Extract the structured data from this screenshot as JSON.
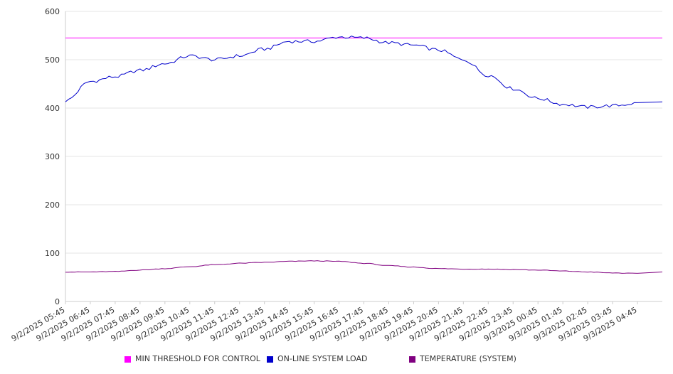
{
  "chart_data": {
    "type": "line",
    "title": "",
    "xlabel": "",
    "ylabel": "",
    "ylim": [
      0,
      600
    ],
    "y_ticks": [
      0,
      100,
      200,
      300,
      400,
      500,
      600
    ],
    "grid": true,
    "legend_position": "bottom",
    "x_tick_labels": [
      "9/2/2025 05:45",
      "9/2/2025 06:45",
      "9/2/2025 07:45",
      "9/2/2025 08:45",
      "9/2/2025 09:45",
      "9/2/2025 10:45",
      "9/2/2025 11:45",
      "9/2/2025 12:45",
      "9/2/2025 13:45",
      "9/2/2025 14:45",
      "9/2/2025 15:45",
      "9/2/2025 16:45",
      "9/2/2025 17:45",
      "9/2/2025 18:45",
      "9/2/2025 19:45",
      "9/2/2025 20:45",
      "9/2/2025 21:45",
      "9/2/2025 22:45",
      "9/2/2025 23:45",
      "9/3/2025 00:45",
      "9/3/2025 01:45",
      "9/3/2025 02:45",
      "9/3/2025 03:45",
      "9/3/2025 04:45"
    ],
    "x": [
      "9/2/2025 05:45",
      "9/2/2025 06:45",
      "9/2/2025 07:45",
      "9/2/2025 08:45",
      "9/2/2025 09:45",
      "9/2/2025 10:45",
      "9/2/2025 11:45",
      "9/2/2025 12:45",
      "9/2/2025 13:45",
      "9/2/2025 14:45",
      "9/2/2025 15:45",
      "9/2/2025 16:45",
      "9/2/2025 17:45",
      "9/2/2025 18:45",
      "9/2/2025 19:45",
      "9/2/2025 20:45",
      "9/2/2025 21:45",
      "9/2/2025 22:45",
      "9/2/2025 23:45",
      "9/3/2025 00:45",
      "9/3/2025 01:45",
      "9/3/2025 02:45",
      "9/3/2025 03:45",
      "9/3/2025 04:45"
    ],
    "series": [
      {
        "name": "MIN THRESHOLD FOR CONTROL",
        "color": "#ff00ff",
        "values": [
          545,
          545,
          545,
          545,
          545,
          545,
          545,
          545,
          545,
          545,
          545,
          545,
          545,
          545,
          545,
          545,
          545,
          545,
          545,
          545,
          545,
          545,
          545,
          545
        ]
      },
      {
        "name": "ON-LINE SYSTEM LOAD",
        "color": "#0000cc",
        "values": [
          415,
          455,
          465,
          478,
          492,
          508,
          500,
          508,
          522,
          538,
          538,
          547,
          545,
          535,
          530,
          520,
          500,
          468,
          440,
          420,
          408,
          402,
          405,
          410
        ]
      },
      {
        "name": "TEMPERATURE (SYSTEM)",
        "color": "#800080",
        "values": [
          61,
          61,
          62,
          65,
          68,
          72,
          76,
          79,
          81,
          83,
          84,
          83,
          79,
          74,
          71,
          68,
          67,
          67,
          66,
          65,
          63,
          61,
          59,
          58
        ]
      }
    ]
  },
  "legend": [
    {
      "label": "MIN THRESHOLD FOR CONTROL",
      "color": "#ff00ff"
    },
    {
      "label": "ON-LINE SYSTEM LOAD",
      "color": "#0000cc"
    },
    {
      "label": "TEMPERATURE (SYSTEM)",
      "color": "#800080"
    }
  ]
}
